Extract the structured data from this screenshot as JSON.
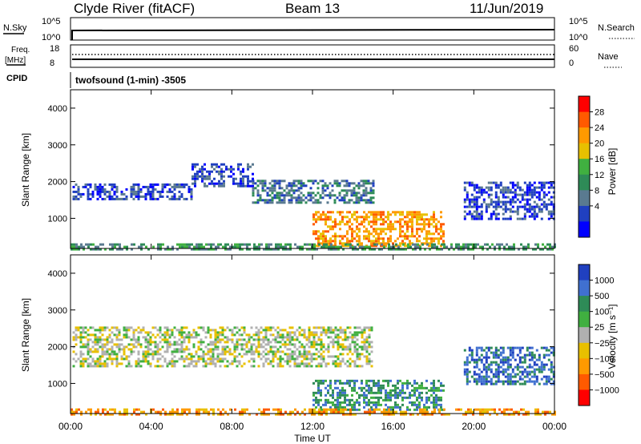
{
  "header": {
    "station": "Clyde River (fitACF)",
    "beam": "Beam 13",
    "date": "11/Jun/2019"
  },
  "top_panels": {
    "nsky_label": "N.Sky",
    "nsky_ticks": [
      "10^5",
      "10^0"
    ],
    "nsearch_label": "N.Search",
    "nsearch_ticks": [
      "10^5",
      "10^0"
    ],
    "freq_label": "Freq.",
    "freq_unit": "[MHz]",
    "freq_ticks": [
      "18",
      "8"
    ],
    "nave_label": "Nave",
    "nave_ticks": [
      "60",
      "0"
    ],
    "cpid_label": "CPID",
    "cpid_value": "twofsound (1-min) -3505"
  },
  "chart_data": [
    {
      "type": "heatmap",
      "name": "power",
      "ylabel": "Slant Range [km]",
      "ylim": [
        180,
        4500
      ],
      "yticks": [
        "4000",
        "3000",
        "2000",
        "1000"
      ],
      "colorbar": {
        "label": "Power [dB]",
        "ticks": [
          "28",
          "24",
          "20",
          "16",
          "12",
          "8",
          "4"
        ],
        "colors": [
          "#ff0000",
          "#ff5a00",
          "#ff9a00",
          "#e8c000",
          "#40b040",
          "#2e8b57",
          "#5a7a90",
          "#2040c0",
          "#0000ff"
        ]
      },
      "bands": [
        {
          "t0": 0.1,
          "t1": 6.0,
          "r0": 1500,
          "r1": 1950,
          "level": 1
        },
        {
          "t0": 6.0,
          "t1": 9.0,
          "r0": 1900,
          "r1": 2500,
          "level": 1
        },
        {
          "t0": 9.0,
          "t1": 15.0,
          "r0": 1450,
          "r1": 2050,
          "level": 2
        },
        {
          "t0": 12.0,
          "t1": 18.5,
          "r0": 250,
          "r1": 1200,
          "level": 6
        },
        {
          "t0": 19.5,
          "t1": 24.0,
          "r0": 1000,
          "r1": 2000,
          "level": 1
        },
        {
          "t0": 0.0,
          "t1": 24.0,
          "r0": 180,
          "r1": 320,
          "level": 3
        }
      ]
    },
    {
      "type": "heatmap",
      "name": "velocity",
      "ylabel": "Slant Range [km]",
      "ylim": [
        180,
        4500
      ],
      "yticks": [
        "4000",
        "3000",
        "2000",
        "1000"
      ],
      "colorbar": {
        "label": "Velocity [m s⁻¹]",
        "ticks": [
          "1000",
          "500",
          "100",
          "25",
          "−25",
          "−100",
          "−500",
          "−1000"
        ],
        "colors": [
          "#2040c0",
          "#4070d0",
          "#2e8b57",
          "#40b040",
          "#b0b0b0",
          "#e8c000",
          "#ff9a00",
          "#ff5a00",
          "#ff0000"
        ]
      },
      "bands": [
        {
          "t0": 0.1,
          "t1": 15.0,
          "r0": 1450,
          "r1": 2550,
          "level": 4
        },
        {
          "t0": 12.0,
          "t1": 18.5,
          "r0": 300,
          "r1": 1100,
          "level": 2
        },
        {
          "t0": 19.5,
          "t1": 24.0,
          "r0": 1000,
          "r1": 2000,
          "level": 1
        },
        {
          "t0": 0.0,
          "t1": 24.0,
          "r0": 180,
          "r1": 320,
          "level": 6
        }
      ]
    }
  ],
  "xaxis": {
    "label": "Time UT",
    "ticks": [
      "00:00",
      "04:00",
      "08:00",
      "12:00",
      "16:00",
      "20:00",
      "00:00"
    ],
    "range_hours": [
      0,
      24
    ]
  }
}
